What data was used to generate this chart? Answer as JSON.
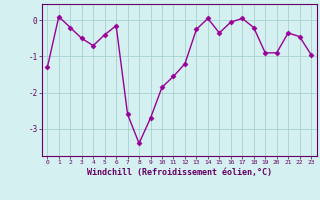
{
  "x": [
    0,
    1,
    2,
    3,
    4,
    5,
    6,
    7,
    8,
    9,
    10,
    11,
    12,
    13,
    14,
    15,
    16,
    17,
    18,
    19,
    20,
    21,
    22,
    23
  ],
  "y": [
    -1.3,
    0.1,
    -0.2,
    -0.5,
    -0.7,
    -0.4,
    -0.15,
    -2.6,
    -3.4,
    -2.7,
    -1.85,
    -1.55,
    -1.2,
    -0.25,
    0.05,
    -0.35,
    -0.05,
    0.05,
    -0.2,
    -0.9,
    -0.9,
    -0.35,
    -0.45,
    -0.95
  ],
  "line_color": "#990099",
  "marker": "D",
  "markersize": 2.5,
  "linewidth": 1.0,
  "bg_color": "#d4f0f0",
  "grid_color": "#a0cccc",
  "xlabel": "Windchill (Refroidissement éolien,°C)",
  "xlabel_color": "#660066",
  "tick_color": "#660066",
  "spine_color": "#660066",
  "ylabel_ticks": [
    0,
    -1,
    -2,
    -3
  ],
  "xlim": [
    -0.5,
    23.5
  ],
  "ylim": [
    -3.75,
    0.45
  ],
  "xticks": [
    0,
    1,
    2,
    3,
    4,
    5,
    6,
    7,
    8,
    9,
    10,
    11,
    12,
    13,
    14,
    15,
    16,
    17,
    18,
    19,
    20,
    21,
    22,
    23
  ]
}
